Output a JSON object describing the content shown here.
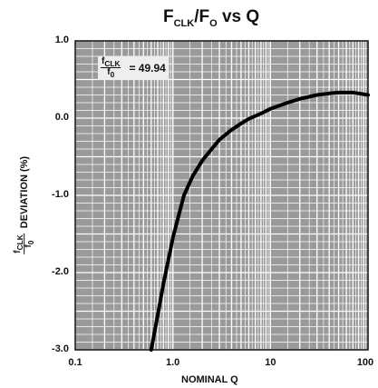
{
  "title": {
    "main": "F",
    "sub1": "CLK",
    "mid": "/F",
    "sub2": "O",
    "rest": " vs Q"
  },
  "annotation": {
    "num": "f",
    "num_sub": "CLK",
    "den": "f",
    "den_sub": "0",
    "eq": "= 49.94"
  },
  "chart_data": {
    "type": "line",
    "title": "FCLK/FO vs Q",
    "xlabel": "NOMINAL Q",
    "ylabel": "fCLK/f0 DEVIATION (%)",
    "xscale": "log",
    "xlim": [
      0.1,
      100
    ],
    "ylim": [
      -3.0,
      1.0
    ],
    "xticks": [
      "0.1",
      "1.0",
      "10",
      "100"
    ],
    "yticks": [
      "1.0",
      "0.0",
      "-1.0",
      "-2.0",
      "-3.0"
    ],
    "grid": true,
    "legend": "none",
    "line_color": "#000000",
    "background_color": "#9a9a9a",
    "grid_color": "#ffffff",
    "series": [
      {
        "x": [
          0.6,
          0.7,
          0.8,
          1.0,
          1.3,
          1.6,
          2.0,
          2.5,
          3.0,
          4.0,
          5.0,
          6.0,
          8.0,
          10.0,
          15.0,
          20.0,
          30.0,
          40.0,
          50.0,
          60.0,
          70.0,
          80.0,
          90.0,
          100.0
        ],
        "values": [
          -3.0,
          -2.55,
          -2.15,
          -1.55,
          -1.0,
          -0.75,
          -0.55,
          -0.4,
          -0.28,
          -0.15,
          -0.07,
          -0.01,
          0.06,
          0.12,
          0.2,
          0.25,
          0.3,
          0.32,
          0.33,
          0.33,
          0.33,
          0.32,
          0.31,
          0.3
        ]
      }
    ]
  }
}
